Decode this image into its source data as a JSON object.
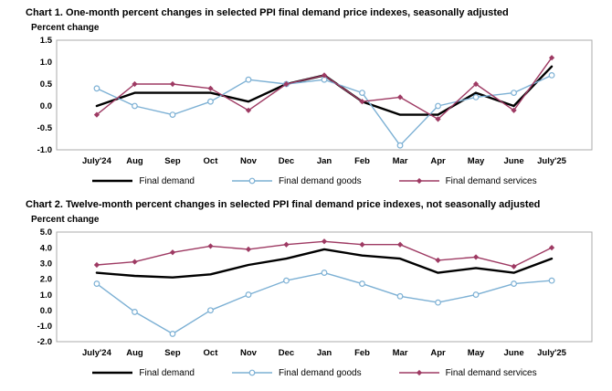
{
  "page_background": "#ffffff",
  "chart_data": [
    {
      "id": "chart1",
      "type": "line",
      "title": "Chart 1. One-month percent changes in selected PPI final demand price indexes, seasonally adjusted",
      "ylabel": "Percent change",
      "categories": [
        "July'24",
        "Aug",
        "Sep",
        "Oct",
        "Nov",
        "Dec",
        "Jan",
        "Feb",
        "Mar",
        "Apr",
        "May",
        "June",
        "July'25"
      ],
      "ylim": [
        -1.0,
        1.5
      ],
      "yticks": [
        1.5,
        1.0,
        0.5,
        0.0,
        -0.5,
        -1.0
      ],
      "ytick_labels": [
        "1.5",
        "1.0",
        "0.5",
        "0.0",
        "-0.5",
        "-1.0"
      ],
      "grid": false,
      "legend_position": "bottom",
      "series": [
        {
          "name": "Final demand",
          "color": "#000000",
          "marker": "none",
          "width": 2.4,
          "values": [
            0.0,
            0.3,
            0.3,
            0.3,
            0.1,
            0.5,
            0.7,
            0.1,
            -0.2,
            -0.2,
            0.3,
            0.0,
            0.9
          ]
        },
        {
          "name": "Final demand goods",
          "color": "#7cb0d4",
          "marker": "circle",
          "width": 1.4,
          "values": [
            0.4,
            0.0,
            -0.2,
            0.1,
            0.6,
            0.5,
            0.6,
            0.3,
            -0.9,
            0.0,
            0.2,
            0.3,
            0.7
          ]
        },
        {
          "name": "Final demand services",
          "color": "#9e3a63",
          "marker": "diamond",
          "width": 1.4,
          "values": [
            -0.2,
            0.5,
            0.5,
            0.4,
            -0.1,
            0.5,
            0.7,
            0.1,
            0.2,
            -0.3,
            0.5,
            -0.1,
            1.1
          ]
        }
      ]
    },
    {
      "id": "chart2",
      "type": "line",
      "title": "Chart 2. Twelve-month percent changes in selected PPI final demand price indexes, not seasonally adjusted",
      "ylabel": "Percent change",
      "categories": [
        "July'24",
        "Aug",
        "Sep",
        "Oct",
        "Nov",
        "Dec",
        "Jan",
        "Feb",
        "Mar",
        "Apr",
        "May",
        "June",
        "July'25"
      ],
      "ylim": [
        -2.0,
        5.0
      ],
      "yticks": [
        5.0,
        4.0,
        3.0,
        2.0,
        1.0,
        0.0,
        -1.0,
        -2.0
      ],
      "ytick_labels": [
        "5.0",
        "4.0",
        "3.0",
        "2.0",
        "1.0",
        "0.0",
        "-1.0",
        "-2.0"
      ],
      "grid": false,
      "legend_position": "bottom",
      "series": [
        {
          "name": "Final demand",
          "color": "#000000",
          "marker": "none",
          "width": 2.4,
          "values": [
            2.4,
            2.2,
            2.1,
            2.3,
            2.9,
            3.3,
            3.9,
            3.5,
            3.3,
            2.4,
            2.7,
            2.4,
            3.3
          ]
        },
        {
          "name": "Final demand goods",
          "color": "#7cb0d4",
          "marker": "circle",
          "width": 1.4,
          "values": [
            1.7,
            -0.1,
            -1.5,
            0.0,
            1.0,
            1.9,
            2.4,
            1.7,
            0.9,
            0.5,
            1.0,
            1.7,
            1.9
          ]
        },
        {
          "name": "Final demand services",
          "color": "#9e3a63",
          "marker": "diamond",
          "width": 1.4,
          "values": [
            2.9,
            3.1,
            3.7,
            4.1,
            3.9,
            4.2,
            4.4,
            4.2,
            4.2,
            3.2,
            3.4,
            2.8,
            4.0
          ]
        }
      ]
    }
  ]
}
